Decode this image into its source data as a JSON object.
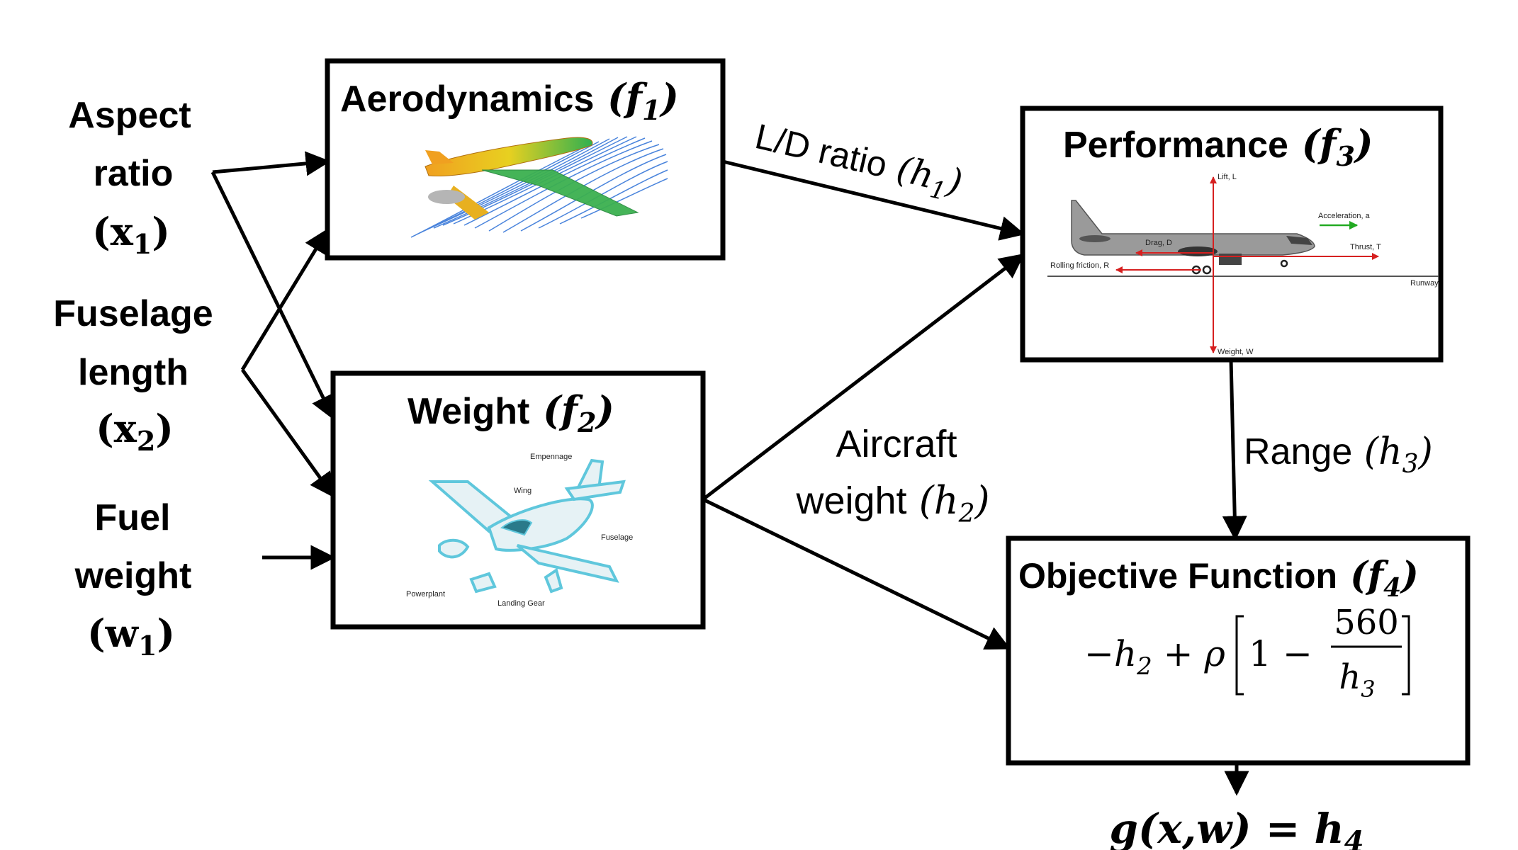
{
  "inputs": {
    "aspect_ratio": {
      "line1": "Aspect",
      "line2": "ratio",
      "sym": "x",
      "sub": "1"
    },
    "fuselage_length": {
      "line1": "Fuselage",
      "line2": "length",
      "sym": "x",
      "sub": "2"
    },
    "fuel_weight": {
      "line1": "Fuel",
      "line2": "weight",
      "sym": "w",
      "sub": "1"
    }
  },
  "blocks": {
    "aerodynamics": {
      "title": "Aerodynamics",
      "sym": "f",
      "sub": "1"
    },
    "weight": {
      "title": "Weight",
      "sym": "f",
      "sub": "2"
    },
    "performance": {
      "title": "Performance",
      "sym": "f",
      "sub": "3"
    },
    "objective": {
      "title": "Objective Function",
      "sym": "f",
      "sub": "4",
      "formula": {
        "lead": "−h",
        "lead_sub": "2",
        "mid": "+ ρ",
        "one": "1",
        "minus": "−",
        "numerator": "560",
        "den": "h",
        "den_sub": "3"
      }
    }
  },
  "edges": {
    "ld_ratio": {
      "label": "L/D ratio",
      "sym": "h",
      "sub": "1"
    },
    "aircraft_weight": {
      "line1": "Aircraft",
      "line2": "weight",
      "sym": "h",
      "sub": "2"
    },
    "range": {
      "label": "Range",
      "sym": "h",
      "sub": "3"
    }
  },
  "output": {
    "lhs": "g(x,w) = h",
    "sub": "4"
  },
  "weight_illustration": {
    "empennage": "Empennage",
    "wing": "Wing",
    "fuselage": "Fuselage",
    "powerplant": "Powerplant",
    "landing_gear": "Landing Gear"
  },
  "performance_illustration": {
    "lift": "Lift, L",
    "drag": "Drag, D",
    "thrust": "Thrust, T",
    "acceleration": "Acceleration, a",
    "rolling_friction": "Rolling friction, R",
    "runway": "Runway",
    "weight": "Weight, W"
  },
  "colors": {
    "stroke": "#000000",
    "force": "#d62020",
    "accel": "#22aa22",
    "flow": "#2b6fd6"
  }
}
